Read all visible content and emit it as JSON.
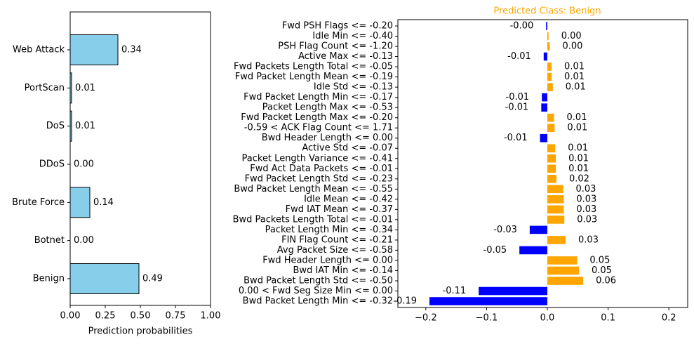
{
  "chart_data": [
    {
      "type": "barh",
      "xlabel": "Prediction probabilities",
      "categories": [
        "Web Attack",
        "PortScan",
        "DoS",
        "DDoS",
        "Brute Force",
        "Botnet",
        "Benign"
      ],
      "values": [
        0.34,
        0.01,
        0.01,
        0.0,
        0.14,
        0.0,
        0.49
      ],
      "value_labels": [
        "0.34",
        "0.01",
        "0.01",
        "0.00",
        "0.14",
        "0.00",
        "0.49"
      ],
      "color": "#87ceeb",
      "edgecolor": "#000000",
      "xlim": [
        0,
        1
      ],
      "xticks": [
        {
          "value": 0,
          "label": "0.00"
        },
        {
          "value": 0.25,
          "label": "0.25"
        },
        {
          "value": 0.5,
          "label": "0.50"
        },
        {
          "value": 0.75,
          "label": "0.75"
        },
        {
          "value": 1,
          "label": "1.00"
        }
      ]
    },
    {
      "type": "diverging-barh",
      "title": "Predicted Class: Benign",
      "title_color": "#ffa500",
      "categories": [
        "Fwd PSH Flags <= -0.20",
        "Idle Min <= -0.40",
        "PSH Flag Count <= -1.20",
        "Active Max <= -0.13",
        "Fwd Packets Length Total <= -0.05",
        "Fwd Packet Length Mean <= -0.19",
        "Idle Std <= -0.13",
        "Fwd Packet Length Min <= -0.17",
        "Packet Length Max <= -0.53",
        "Fwd Packet Length Max <= -0.20",
        "-0.59 < ACK Flag Count <= 1.71",
        "Bwd Header Length <= 0.00",
        "Active Std <= -0.07",
        "Packet Length Variance <= -0.41",
        "Fwd Act Data Packets <= -0.01",
        "Fwd Packet Length Std <= -0.23",
        "Bwd Packet Length Mean <= -0.55",
        "Idle Mean <= -0.42",
        "Fwd IAT Mean <= -0.37",
        "Bwd Packets Length Total <= -0.01",
        "Packet Length Min <= -0.34",
        "FIN Flag Count <= -0.21",
        "Avg Packet Size <= -0.58",
        "Fwd Header Length <= 0.00",
        "Bwd IAT Min <= -0.14",
        "Bwd Packet Length Std <= -0.50",
        "0.00 < Fwd Seg Size Min <= 0.00",
        "Bwd Packet Length Min <= -0.32"
      ],
      "values": [
        -0.002,
        0.002,
        0.004,
        -0.006,
        0.007,
        0.007,
        0.009,
        -0.009,
        -0.01,
        0.011,
        0.012,
        -0.012,
        0.013,
        0.014,
        0.014,
        0.015,
        0.026,
        0.027,
        0.027,
        0.028,
        -0.029,
        0.03,
        -0.046,
        0.049,
        0.052,
        0.059,
        -0.113,
        -0.194
      ],
      "value_labels": [
        "-0.00",
        "0.00",
        "0.00",
        "-0.01",
        "0.01",
        "0.01",
        "0.01",
        "-0.01",
        "-0.01",
        "0.01",
        "0.01",
        "-0.01",
        "0.01",
        "0.01",
        "0.01",
        "0.02",
        "0.03",
        "0.03",
        "0.03",
        "0.03",
        "-0.03",
        "0.03",
        "-0.05",
        "0.05",
        "0.05",
        "0.06",
        "-0.11",
        "-0.19"
      ],
      "positive_color": "#ffa500",
      "negative_color": "#0000ff",
      "xlim": [
        -0.246,
        0.231
      ],
      "xticks": [
        {
          "value": -0.2,
          "label": "−0.2"
        },
        {
          "value": -0.1,
          "label": "−0.1"
        },
        {
          "value": 0,
          "label": "0.0"
        },
        {
          "value": 0.1,
          "label": "0.1"
        },
        {
          "value": 0.2,
          "label": "0.2"
        }
      ]
    }
  ]
}
